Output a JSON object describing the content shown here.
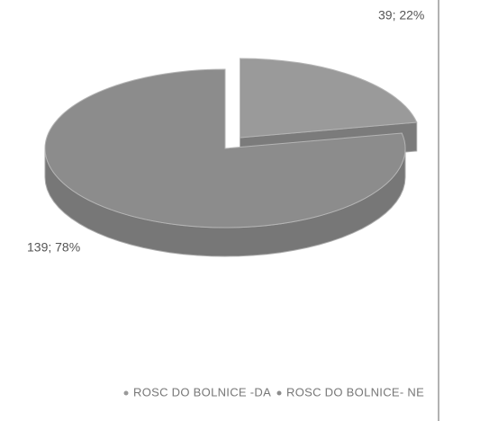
{
  "chart_data": {
    "type": "pie",
    "categories": [
      "ROSC DO BOLNICE -DA",
      "ROSC DO BOLNICE- NE"
    ],
    "values": [
      39,
      139
    ],
    "value_labels": [
      "39; 22%",
      "139; 78%"
    ],
    "colors": [
      "#9a9a9a",
      "#8c8c8c"
    ],
    "legend": "bottom"
  }
}
